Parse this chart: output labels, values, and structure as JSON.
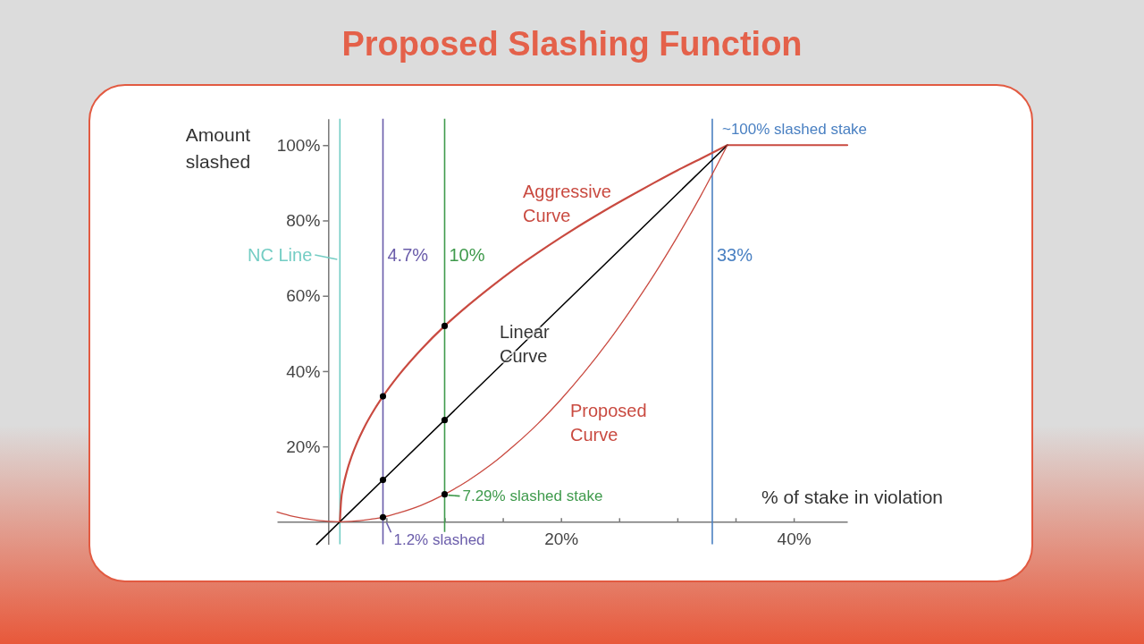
{
  "chart_data": {
    "type": "line",
    "title": "Proposed Slashing Function",
    "xlabel": "% of stake in violation",
    "ylabel": "Amount slashed",
    "xlim": [
      -4.4,
      44.6
    ],
    "ylim": [
      -6,
      107
    ],
    "xticks": [
      {
        "value": 5,
        "label": null
      },
      {
        "value": 10,
        "label": null
      },
      {
        "value": 15,
        "label": null
      },
      {
        "value": 20,
        "label": "20%"
      },
      {
        "value": 25,
        "label": null
      },
      {
        "value": 30,
        "label": null
      },
      {
        "value": 35,
        "label": null
      },
      {
        "value": 40,
        "label": "40%"
      }
    ],
    "yticks": [
      {
        "value": 20,
        "label": "20%"
      },
      {
        "value": 40,
        "label": "40%"
      },
      {
        "value": 60,
        "label": "60%"
      },
      {
        "value": 80,
        "label": "80%"
      },
      {
        "value": 100,
        "label": "100%"
      }
    ],
    "series": [
      {
        "name": "Aggressive Curve",
        "color": "#c94a40",
        "x": [
          1,
          1.1,
          1.3,
          1.6,
          2,
          2.5,
          3,
          4,
          4.7,
          6,
          8,
          10,
          12,
          14,
          16,
          18,
          20,
          22,
          24,
          26,
          28,
          30,
          32,
          34.3,
          44.6
        ],
        "values": [
          0,
          5.5,
          9.5,
          13.4,
          17.3,
          21.2,
          24.5,
          30,
          33.3,
          38.7,
          45.8,
          52,
          57.4,
          62.4,
          67.1,
          71.4,
          75.5,
          79.4,
          83.1,
          86.6,
          90,
          93.3,
          96.4,
          100,
          100
        ]
      },
      {
        "name": "Linear Curve",
        "color": "#000000",
        "x": [
          -1,
          34.3
        ],
        "values": [
          -6,
          100
        ]
      },
      {
        "name": "Proposed Curve",
        "color": "#c94a40",
        "x": [
          -4.4,
          -3,
          -2,
          -1,
          0,
          1,
          2,
          3,
          4,
          4.7,
          6,
          8,
          10,
          12,
          14,
          16,
          18,
          20,
          22,
          24,
          26,
          28,
          30,
          32,
          34.3
        ],
        "values": [
          2.6,
          1.4,
          0.8,
          0.4,
          0.1,
          0,
          0.1,
          0.4,
          0.8,
          1.2,
          2.3,
          4.4,
          7.29,
          10.9,
          15.2,
          20.3,
          26,
          32.5,
          39.7,
          47.6,
          56.3,
          65.6,
          75.7,
          86.5,
          100
        ]
      },
      {
        "type": "scatter",
        "color": "#000000",
        "marker": "circle",
        "x": [
          4.7,
          4.7,
          4.7,
          10,
          10,
          10
        ],
        "values": [
          33.3,
          11.1,
          1.2,
          52,
          27,
          7.29
        ]
      }
    ],
    "ref_lines": [
      {
        "axis": "x",
        "value": 1,
        "label": "NC Line",
        "color": "#74cdc4"
      },
      {
        "axis": "x",
        "value": 4.7,
        "label": "4.7%",
        "color": "#6a5caa"
      },
      {
        "axis": "x",
        "value": 10,
        "label": "10%",
        "color": "#3f9a4c"
      },
      {
        "axis": "x",
        "value": 33,
        "label": "33%",
        "color": "#4a80c2"
      }
    ],
    "annotations": [
      {
        "text": "~100% slashed stake",
        "x": 33,
        "y": 100
      },
      {
        "text": "7.29% slashed stake",
        "x": 10,
        "y": 7.29
      },
      {
        "text": "1.2% slashed",
        "x": 4.7,
        "y": 1.2
      }
    ]
  }
}
